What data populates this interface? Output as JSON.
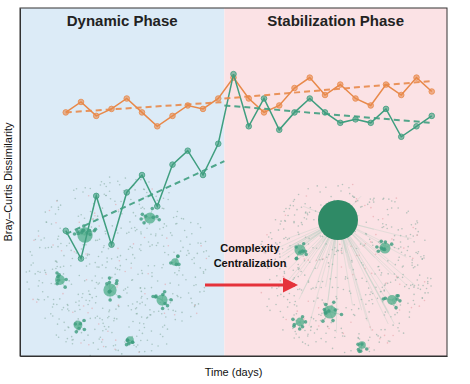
{
  "chart_data": {
    "type": "line",
    "x": [
      3,
      4,
      5,
      6,
      7,
      8,
      9,
      10,
      11,
      12,
      13,
      14,
      15,
      16,
      17,
      18,
      19,
      20,
      21,
      22,
      23,
      24,
      25,
      26,
      27
    ],
    "xlim": [
      0,
      28
    ],
    "ylim": [
      0,
      1
    ],
    "tick_labels": false,
    "grid": false,
    "x_label": "Time (days)",
    "y_label": "Bray–Curtis Dissimilarity",
    "phases": [
      {
        "label": "Dynamic Phase",
        "color": "#dcebf7",
        "x": [
          0,
          13.4
        ]
      },
      {
        "label": "Stabilization Phase",
        "color": "#fbe2e5",
        "x": [
          13.4,
          28
        ]
      }
    ],
    "annotations": [
      {
        "text": "Complexity"
      },
      {
        "text": "Centralization"
      }
    ],
    "series": [
      {
        "color": "#e8894a",
        "marker": "circle",
        "values": [
          0.7,
          0.73,
          0.69,
          0.71,
          0.74,
          0.7,
          0.66,
          0.69,
          0.72,
          0.71,
          0.74,
          0.8,
          0.74,
          0.7,
          0.72,
          0.77,
          0.8,
          0.75,
          0.78,
          0.74,
          0.72,
          0.78,
          0.75,
          0.8,
          0.76
        ]
      },
      {
        "color": "#3f9e7f",
        "marker": "circle",
        "values": [
          0.36,
          0.28,
          0.46,
          0.32,
          0.47,
          0.52,
          0.43,
          0.55,
          0.59,
          0.52,
          0.61,
          0.81,
          0.66,
          0.74,
          0.65,
          0.7,
          0.74,
          0.7,
          0.67,
          0.68,
          0.67,
          0.71,
          0.63,
          0.66,
          0.69
        ]
      },
      {
        "color": "#e8894a",
        "line_style": "dashed",
        "x": [
          3,
          13.4
        ],
        "values": [
          0.7,
          0.73
        ]
      },
      {
        "color": "#e8894a",
        "line_style": "dashed",
        "x": [
          13.4,
          27
        ],
        "values": [
          0.74,
          0.79
        ]
      },
      {
        "color": "#3f9e7f",
        "line_style": "dashed",
        "x": [
          3,
          13.4
        ],
        "values": [
          0.35,
          0.56
        ]
      },
      {
        "color": "#3f9e7f",
        "line_style": "dashed",
        "x": [
          13.4,
          27
        ],
        "values": [
          0.72,
          0.67
        ]
      }
    ]
  }
}
